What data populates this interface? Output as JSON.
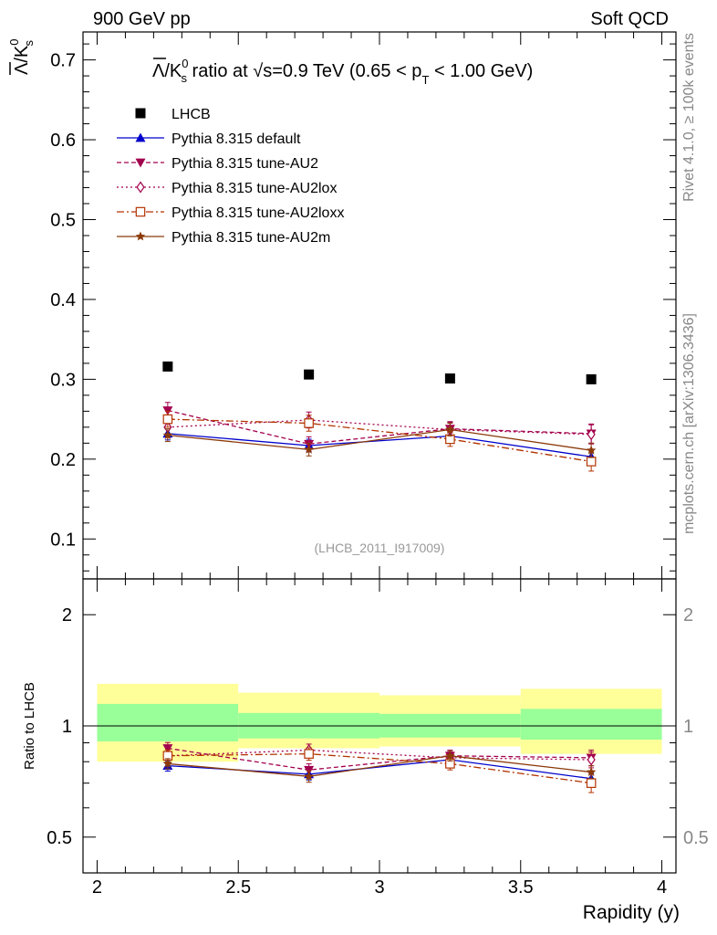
{
  "header": {
    "left": "900 GeV pp",
    "right": "Soft QCD"
  },
  "side_labels": {
    "rivet": "Rivet 4.1.0, ≥ 100k events",
    "mcplots": "mcplots.cern.ch [arXiv:1306.3436]"
  },
  "main_plot": {
    "title_ratio": "Λ/K",
    "title_sup": "0",
    "title_sub": "s",
    "title_mid": " ratio at √s=0.9 TeV (0.65 < p",
    "title_pt_sub": "T",
    "title_end": " < 1.00 GeV)",
    "ylabel": "Λ/K",
    "ylabel_sup": "0",
    "ylabel_sub": "s",
    "analysis_id": "(LHCB_2011_I917009)"
  },
  "ratio_plot": {
    "ylabel": "Ratio to LHCB"
  },
  "xlabel": "Rapidity (y)",
  "legend": [
    {
      "label": "LHCB",
      "color": "#000000",
      "marker": "square",
      "dash": ""
    },
    {
      "label": "Pythia 8.315 default",
      "color": "#0000cc",
      "marker": "triangle-up",
      "dash": ""
    },
    {
      "label": "Pythia 8.315 tune-AU2",
      "color": "#a3004d",
      "marker": "triangle-down",
      "dash": "5,3"
    },
    {
      "label": "Pythia 8.315 tune-AU2lox",
      "color": "#a3004d",
      "marker": "diamond-open",
      "dash": "2,3"
    },
    {
      "label": "Pythia 8.315 tune-AU2loxx",
      "color": "#b33300",
      "marker": "square-open",
      "dash": "8,3,2,3"
    },
    {
      "label": "Pythia 8.315 tune-AU2m",
      "color": "#8b3a0a",
      "marker": "star",
      "dash": ""
    }
  ],
  "chart_data": {
    "type": "line",
    "title": "Λ/K0s ratio at √s=0.9 TeV (0.65 < pT < 1.00 GeV)",
    "xlabel": "Rapidity (y)",
    "ylabel": "Λ/K0s",
    "xlim": [
      1.95,
      4.05
    ],
    "ylim": [
      0.05,
      0.735
    ],
    "x_ticks": [
      2,
      2.5,
      3,
      3.5,
      4
    ],
    "x_tick_labels": [
      "2",
      "2.5",
      "3",
      "3.5",
      "4"
    ],
    "y_ticks": [
      0.1,
      0.2,
      0.3,
      0.4,
      0.5,
      0.6,
      0.7
    ],
    "y_tick_labels": [
      "0.1",
      "0.2",
      "0.3",
      "0.4",
      "0.5",
      "0.6",
      "0.7"
    ],
    "x": [
      2.25,
      2.75,
      3.25,
      3.75
    ],
    "bin_edges": [
      2.0,
      2.5,
      3.0,
      3.5,
      4.0
    ],
    "series": [
      {
        "name": "LHCB",
        "values": [
          0.316,
          0.306,
          0.301,
          0.3
        ],
        "errors": [
          0.006,
          0.005,
          0.004,
          0.005
        ]
      },
      {
        "name": "Pythia 8.315 default",
        "values": [
          0.232,
          0.217,
          0.229,
          0.203
        ],
        "errors": [
          0.008,
          0.008,
          0.008,
          0.008
        ]
      },
      {
        "name": "Pythia 8.315 tune-AU2",
        "values": [
          0.261,
          0.219,
          0.238,
          0.232
        ],
        "errors": [
          0.01,
          0.009,
          0.009,
          0.012
        ]
      },
      {
        "name": "Pythia 8.315 tune-AU2lox",
        "values": [
          0.24,
          0.249,
          0.237,
          0.231
        ],
        "errors": [
          0.01,
          0.01,
          0.009,
          0.012
        ]
      },
      {
        "name": "Pythia 8.315 tune-AU2loxx",
        "values": [
          0.25,
          0.245,
          0.225,
          0.197
        ],
        "errors": [
          0.01,
          0.01,
          0.009,
          0.012
        ]
      },
      {
        "name": "Pythia 8.315 tune-AU2m",
        "values": [
          0.23,
          0.212,
          0.237,
          0.211
        ],
        "errors": [
          0.008,
          0.008,
          0.008,
          0.009
        ]
      }
    ],
    "ratio": {
      "ylabel": "Ratio to LHCB",
      "ylim": [
        0.4,
        2.5
      ],
      "y_ticks": [
        0.5,
        1,
        2
      ],
      "y_tick_labels": [
        "0.5",
        "1",
        "2"
      ],
      "stat_band": [
        [
          0.908,
          1.147
        ],
        [
          0.925,
          1.084
        ],
        [
          0.93,
          1.078
        ],
        [
          0.918,
          1.112
        ]
      ],
      "total_band": [
        [
          0.8,
          1.3
        ],
        [
          0.87,
          1.23
        ],
        [
          0.88,
          1.21
        ],
        [
          0.84,
          1.26
        ]
      ],
      "series": [
        {
          "name": "Pythia 8.315 default",
          "values": [
            0.78,
            0.74,
            0.81,
            0.72
          ]
        },
        {
          "name": "Pythia 8.315 tune-AU2",
          "values": [
            0.87,
            0.76,
            0.83,
            0.82
          ]
        },
        {
          "name": "Pythia 8.315 tune-AU2lox",
          "values": [
            0.83,
            0.86,
            0.82,
            0.81
          ]
        },
        {
          "name": "Pythia 8.315 tune-AU2loxx",
          "values": [
            0.83,
            0.84,
            0.79,
            0.7
          ]
        },
        {
          "name": "Pythia 8.315 tune-AU2m",
          "values": [
            0.79,
            0.73,
            0.83,
            0.75
          ]
        }
      ]
    }
  }
}
